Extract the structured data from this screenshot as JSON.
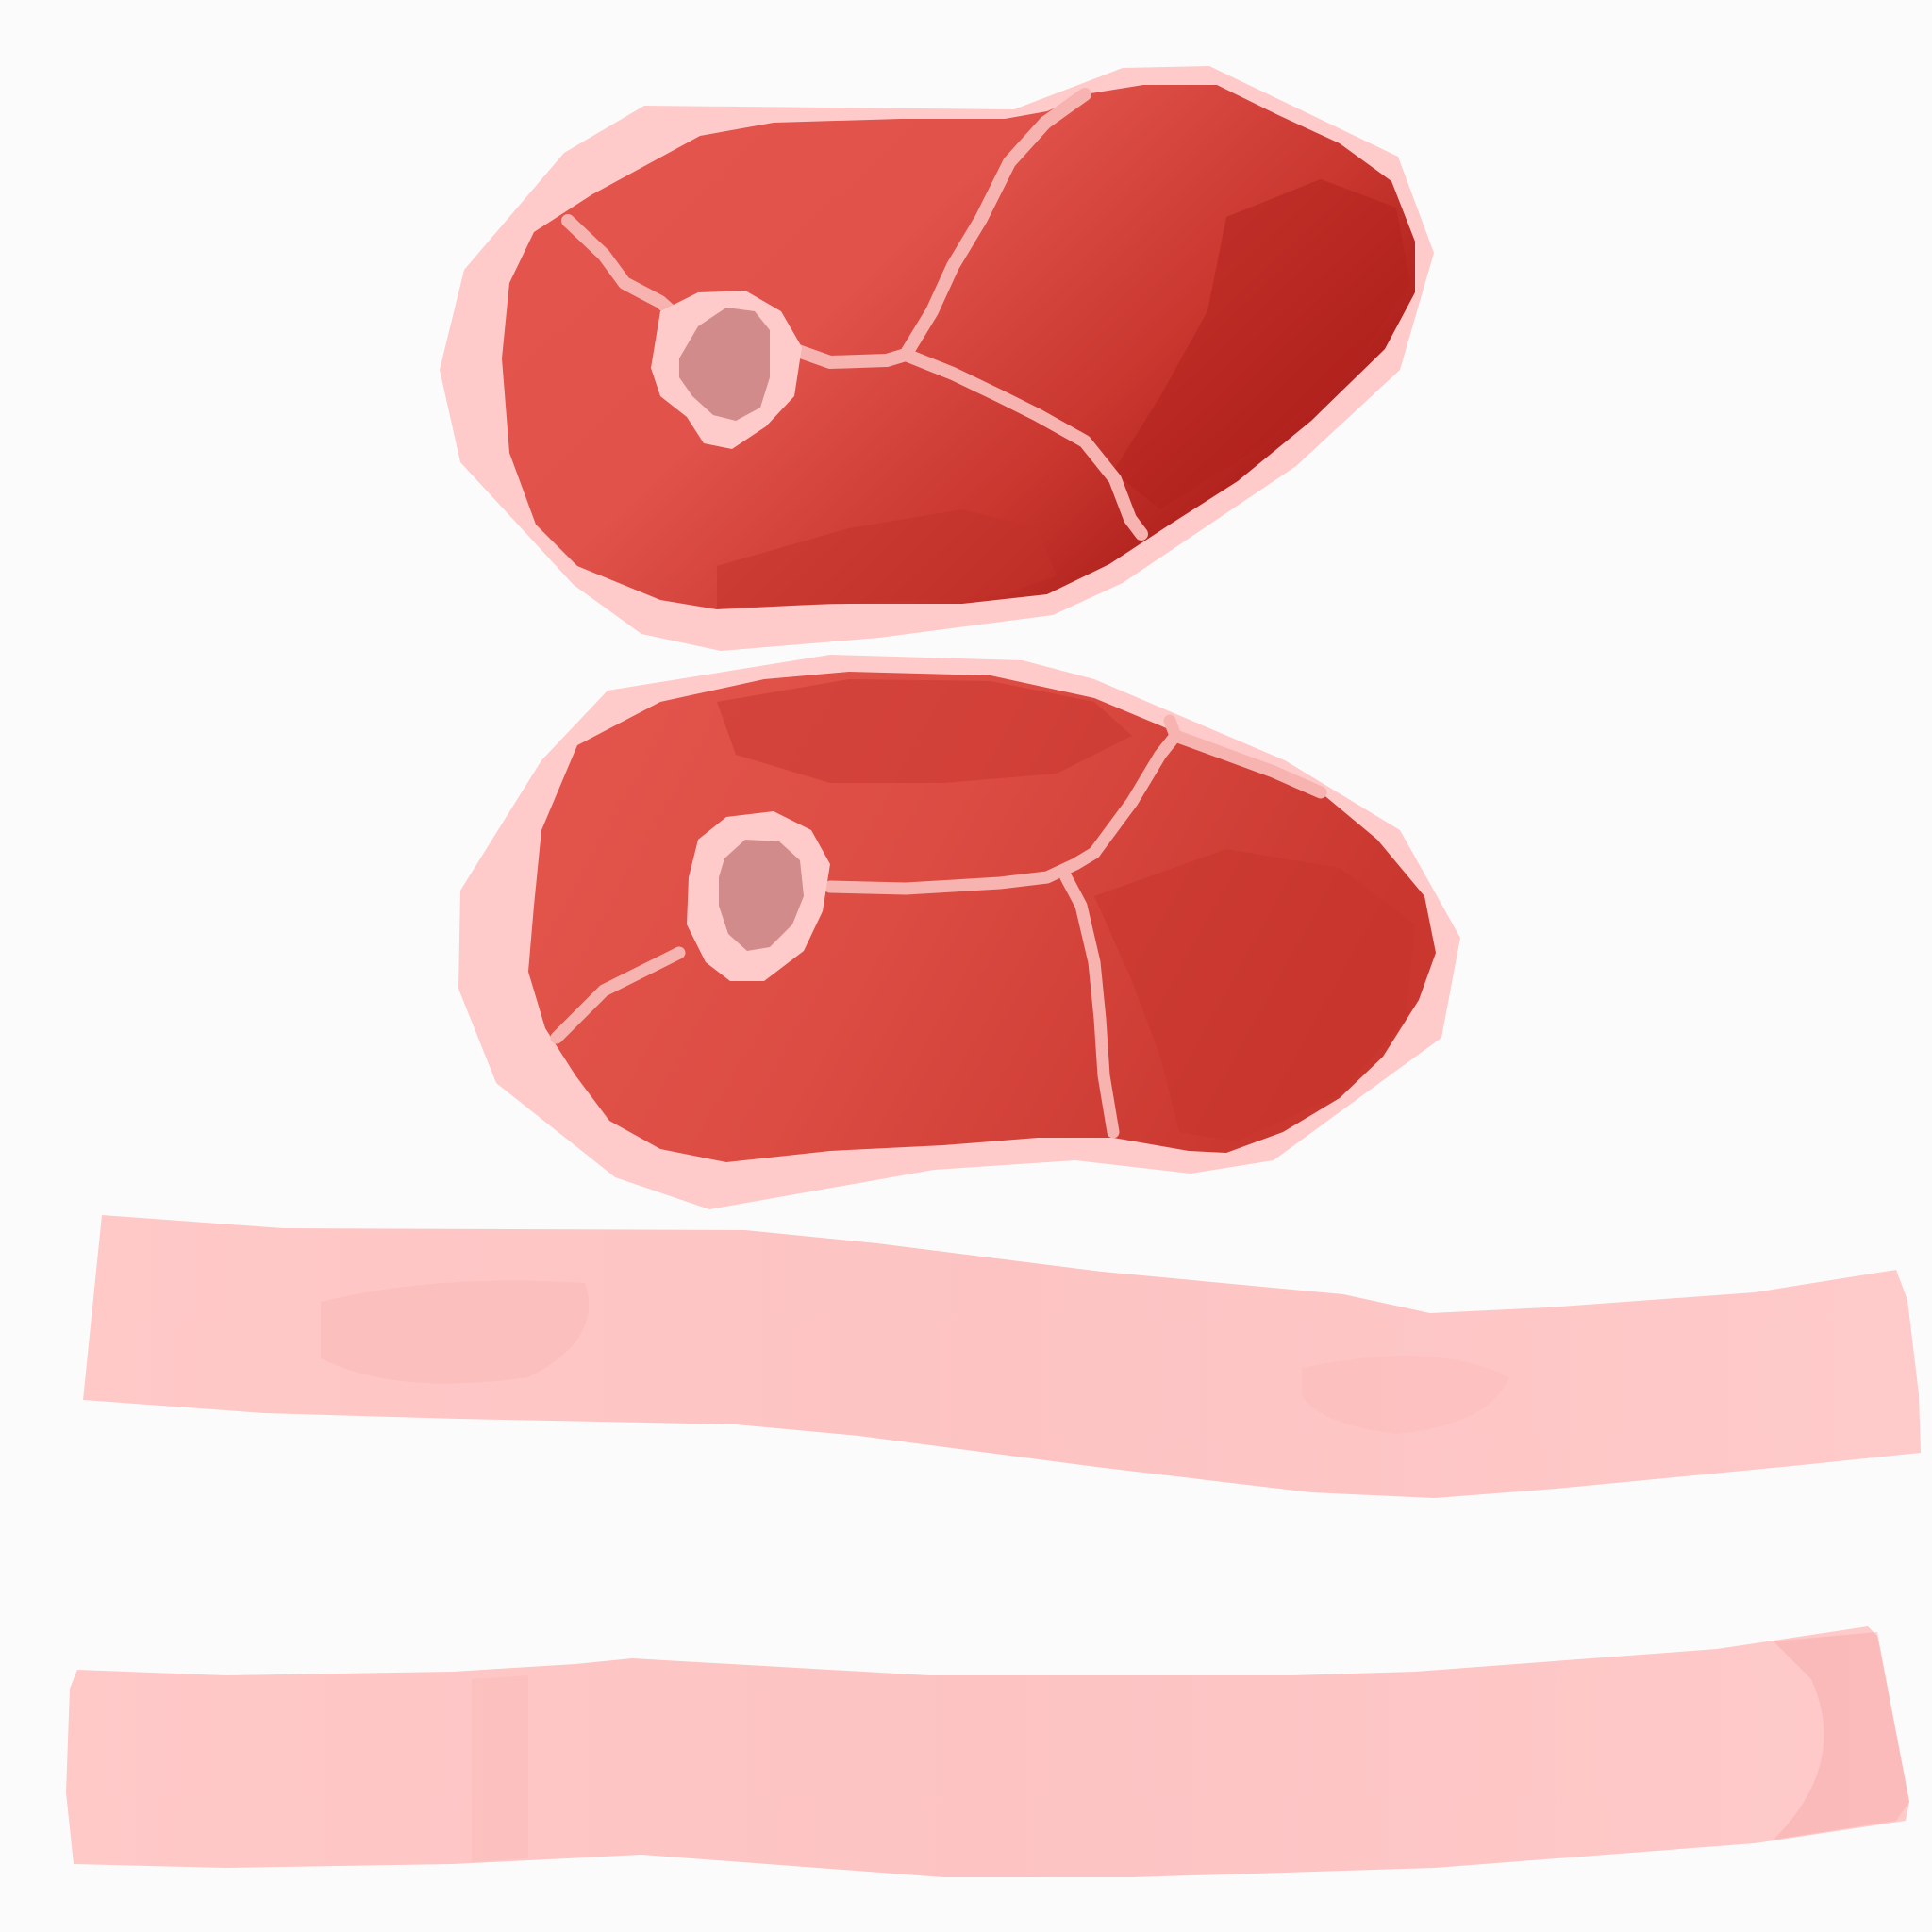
{
  "scene": {
    "background_color": "#fbfbfb",
    "items": [
      {
        "kind": "steak",
        "description_color": "#e0534a"
      },
      {
        "kind": "steak",
        "description_color": "#e0534a"
      },
      {
        "kind": "fat-strip",
        "description_color": "#ffc9c7"
      },
      {
        "kind": "fat-strip",
        "description_color": "#ffc9c7"
      }
    ]
  },
  "colors": {
    "fat": "#ffcaca",
    "fat_edge": "#ffbdbd",
    "meat_light": "#e2544b",
    "meat_mid": "#cf3d34",
    "meat_dark": "#aa1b18",
    "bone": "#d18b8a",
    "marbling": "#f6a9a6"
  }
}
